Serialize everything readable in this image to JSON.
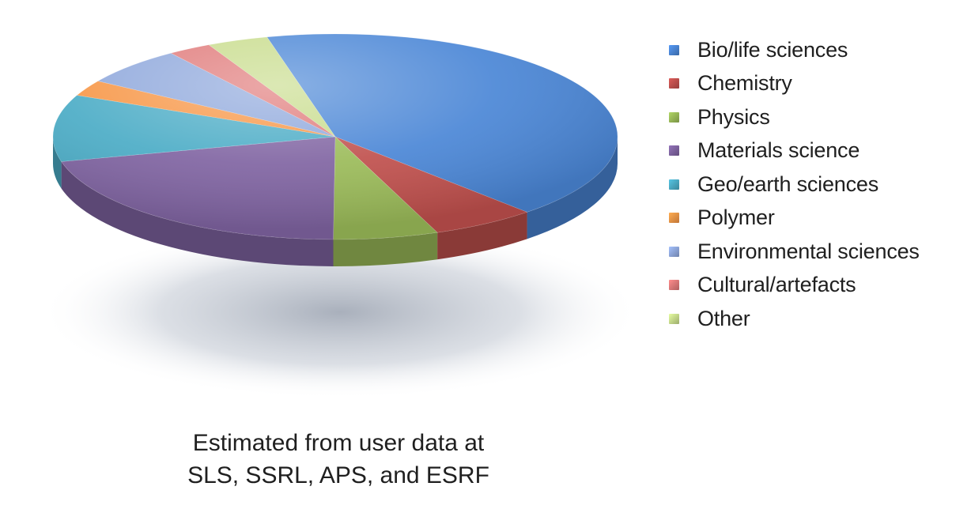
{
  "chart_data": {
    "type": "pie",
    "title": "",
    "legend_position": "right",
    "slices": [
      {
        "name": "Bio/life sciences",
        "value": 42.0,
        "color": "#4a86d6"
      },
      {
        "name": "Chemistry",
        "value": 6.0,
        "color": "#c0504d"
      },
      {
        "name": "Physics",
        "value": 6.0,
        "color": "#9bbb59"
      },
      {
        "name": "Materials science",
        "value": 21.0,
        "color": "#8064a2"
      },
      {
        "name": "Geo/earth sciences",
        "value": 10.5,
        "color": "#4bacc6"
      },
      {
        "name": "Polymer",
        "value": 2.5,
        "color": "#f79646"
      },
      {
        "name": "Environmental sciences",
        "value": 6.0,
        "color": "#8fa8dc"
      },
      {
        "name": "Cultural/artefacts",
        "value": 2.5,
        "color": "#e07a7a"
      },
      {
        "name": "Other",
        "value": 3.5,
        "color": "#c8dc8c"
      }
    ]
  },
  "caption": {
    "line1": "Estimated from user data at",
    "line2": "SLS, SSRL, APS, and ESRF"
  }
}
